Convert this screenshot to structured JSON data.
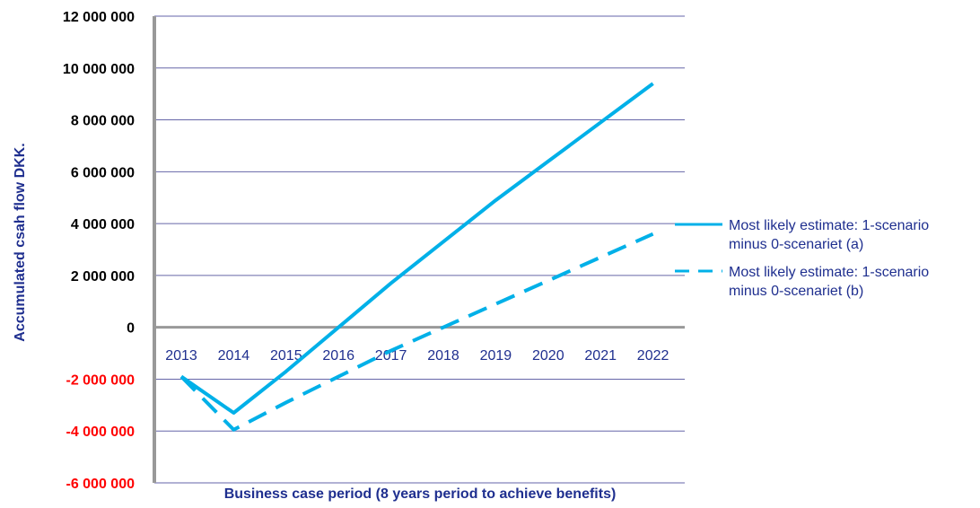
{
  "chart_data": {
    "type": "line",
    "title": "",
    "xlabel": "Business case period (8 years period to achieve benefits)",
    "ylabel": "Accumulated csah flow DKK.",
    "categories": [
      "2013",
      "2014",
      "2015",
      "2016",
      "2017",
      "2018",
      "2019",
      "2020",
      "2021",
      "2022"
    ],
    "y_ticks": [
      {
        "value": 12000000,
        "label": "12 000 000"
      },
      {
        "value": 10000000,
        "label": "10 000 000"
      },
      {
        "value": 8000000,
        "label": "8 000 000"
      },
      {
        "value": 6000000,
        "label": "6 000 000"
      },
      {
        "value": 4000000,
        "label": "4 000 000"
      },
      {
        "value": 2000000,
        "label": "2 000 000"
      },
      {
        "value": 0,
        "label": "0"
      },
      {
        "value": -2000000,
        "label": "-2 000 000"
      },
      {
        "value": -4000000,
        "label": "-4 000 000"
      },
      {
        "value": -6000000,
        "label": "-6 000 000"
      }
    ],
    "ylim": [
      -6000000,
      12000000
    ],
    "grid": true,
    "legend_position": "right",
    "colors": {
      "series": "#00b0e8",
      "positive_tick": "#000000",
      "negative_tick": "#ff0000",
      "axis_text": "#1f2f8f",
      "gridline": "#6666a8",
      "axis": "#999999"
    },
    "series": [
      {
        "name": "Most likely estimate: 1-scenario minus 0-scenariet (a)",
        "legend_lines": [
          "Most likely estimate: 1-scenario",
          "minus 0-scenariet (a)"
        ],
        "style": "solid",
        "values": [
          -1900000,
          -3300000,
          -1700000,
          0,
          1700000,
          3300000,
          4900000,
          6400000,
          7900000,
          9400000
        ]
      },
      {
        "name": "Most likely estimate: 1-scenario minus 0-scenariet (b)",
        "legend_lines": [
          "Most likely estimate: 1-scenario",
          "minus 0-scenariet (b)"
        ],
        "style": "dashed",
        "values": [
          -1900000,
          -3950000,
          -2900000,
          -1900000,
          -900000,
          0,
          900000,
          1800000,
          2700000,
          3600000
        ]
      }
    ]
  }
}
